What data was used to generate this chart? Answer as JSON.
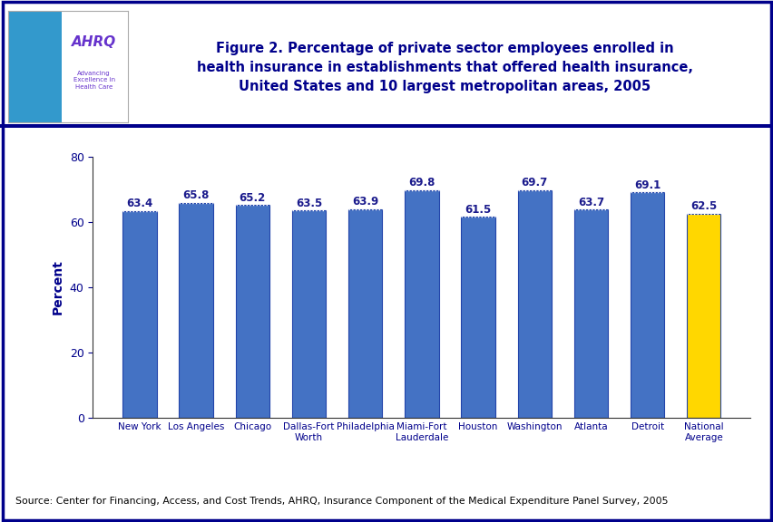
{
  "categories": [
    "New York",
    "Los Angeles",
    "Chicago",
    "Dallas-Fort\nWorth",
    "Philadelphia",
    "Miami-Fort\nLauderdale",
    "Houston",
    "Washington",
    "Atlanta",
    "Detroit",
    "National\nAverage"
  ],
  "values": [
    63.4,
    65.8,
    65.2,
    63.5,
    63.9,
    69.8,
    61.5,
    69.7,
    63.7,
    69.1,
    62.5
  ],
  "bar_colors": [
    "#4472C4",
    "#4472C4",
    "#4472C4",
    "#4472C4",
    "#4472C4",
    "#4472C4",
    "#4472C4",
    "#4472C4",
    "#4472C4",
    "#4472C4",
    "#FFD700"
  ],
  "title_line1": "Figure 2. Percentage of private sector employees enrolled in",
  "title_line2": "health insurance in establishments that offered health insurance,",
  "title_line3": "United States and 10 largest metropolitan areas, 2005",
  "ylabel": "Percent",
  "ylim": [
    0,
    80
  ],
  "yticks": [
    0,
    20,
    40,
    60,
    80
  ],
  "source_text": "Source: Center for Financing, Access, and Cost Trends, AHRQ, Insurance Component of the Medical Expenditure Panel Survey, 2005",
  "title_color": "#00008B",
  "label_color": "#1a1a8c",
  "bar_edge_color": "#2244AA",
  "background_color": "#FFFFFF",
  "plot_bg_color": "#FFFFFF",
  "outer_border_color": "#00008B",
  "separator_line_color": "#00008B",
  "axis_color": "#333333",
  "tick_label_color": "#00008B",
  "ylabel_color": "#00008B"
}
